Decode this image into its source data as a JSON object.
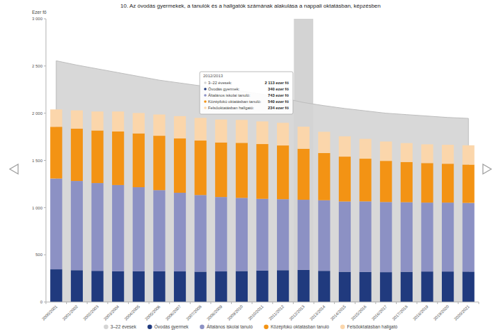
{
  "chart_data": {
    "type": "bar",
    "title": "10. Az óvodás gyermekek, a tanulók és a hallgatók számának alakulása a nappali oktatásban, képzésben",
    "y_label": "Ezer fő",
    "stacked": true,
    "grid": false,
    "legend": "bottom",
    "categories": [
      "2000/2001",
      "2001/2002",
      "2002/2003",
      "2003/2004",
      "2004/2005",
      "2005/2006",
      "2006/2007",
      "2007/2008",
      "2008/2009",
      "2009/2010",
      "2010/2011",
      "2011/2012",
      "2012/2013",
      "2013/2014",
      "2014/2015",
      "2015/2016",
      "2016/2017",
      "2017/2018",
      "2018/2019",
      "2019/2020",
      "2020/2021"
    ],
    "ylim": [
      0,
      3000
    ],
    "yticks": [
      0,
      500,
      {
        "value": 1000,
        "label": "1 000"
      },
      {
        "value": 1500,
        "label": "1 500"
      },
      {
        "value": 2000,
        "label": "2 000"
      },
      {
        "value": 2500,
        "label": "2 500"
      },
      {
        "value": 3000,
        "label": "3 000"
      }
    ],
    "series": [
      {
        "name": "3–22 évesek",
        "type": "area",
        "color": "#d4d4d4",
        "values": [
          2555,
          2510,
          2470,
          2430,
          2390,
          2350,
          2320,
          2290,
          2260,
          2235,
          2200,
          2160,
          2113,
          2080,
          2050,
          2025,
          2000,
          1985,
          1970,
          1955,
          1945
        ]
      },
      {
        "name": "Óvodás gyermek",
        "type": "bar",
        "color": "#203a7e",
        "values": [
          346,
          337,
          330,
          326,
          326,
          325,
          324,
          321,
          324,
          328,
          333,
          337,
          340,
          330,
          320,
          318,
          316,
          320,
          323,
          323,
          322
        ]
      },
      {
        "name": "Általános iskolai tanuló",
        "type": "bar",
        "color": "#8c91c4",
        "values": [
          962,
          945,
          930,
          913,
          890,
          860,
          833,
          812,
          788,
          775,
          760,
          752,
          743,
          748,
          745,
          748,
          743,
          737,
          730,
          730,
          728
        ]
      },
      {
        "name": "Középfokú oktatásban tanuló",
        "type": "bar",
        "color": "#f39314",
        "values": [
          548,
          555,
          557,
          567,
          570,
          576,
          576,
          577,
          578,
          583,
          580,
          569,
          540,
          500,
          475,
          452,
          436,
          426,
          419,
          412,
          406
        ]
      },
      {
        "name": "Felsőoktatásban hallgató",
        "type": "bar",
        "color": "#fbd6ab",
        "values": [
          184,
          193,
          201,
          212,
          216,
          225,
          236,
          240,
          243,
          243,
          240,
          240,
          234,
          225,
          215,
          210,
          205,
          200,
          198,
          200,
          204
        ]
      }
    ],
    "tooltip": {
      "title": "2012/2013",
      "rows": [
        {
          "name": "3–22 évesek:",
          "value_label": "2 113 ezer fő"
        },
        {
          "name": "Óvodás gyermek:",
          "value_label": "340 ezer fő"
        },
        {
          "name": "Általános iskolai tanuló:",
          "value_label": "743 ezer fő"
        },
        {
          "name": "Középfokú oktatásban tanuló:",
          "value_label": "540 ezer fő"
        },
        {
          "name": "Felsőoktatásban hallgató:",
          "value_label": "234 ezer fő"
        }
      ]
    }
  }
}
